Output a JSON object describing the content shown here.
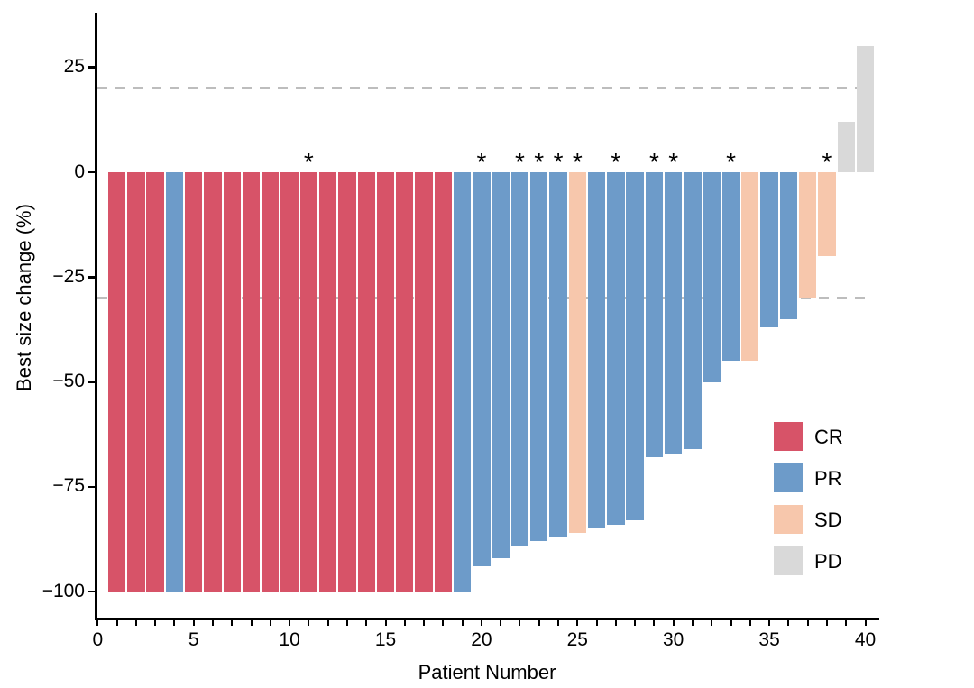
{
  "figure": {
    "background": "#ffffff",
    "axis_color": "#000000",
    "text_color": "#000000"
  },
  "chart_data": {
    "type": "bar",
    "subtype": "waterfall",
    "title": "",
    "xlabel": "Patient Number",
    "ylabel": "Best size change (%)",
    "xlim": [
      0,
      40
    ],
    "ylim": [
      -100,
      30
    ],
    "grid": false,
    "significance_marker": "*",
    "x_minor_tick_every": 1,
    "x_major_ticks": [
      {
        "value": 0,
        "label": "0"
      },
      {
        "value": 5,
        "label": "5"
      },
      {
        "value": 10,
        "label": "10"
      },
      {
        "value": 15,
        "label": "15"
      },
      {
        "value": 20,
        "label": "20"
      },
      {
        "value": 25,
        "label": "25"
      },
      {
        "value": 30,
        "label": "30"
      },
      {
        "value": 35,
        "label": "35"
      },
      {
        "value": 40,
        "label": "40"
      }
    ],
    "y_ticks": [
      {
        "value": 25,
        "label": "25"
      },
      {
        "value": 0,
        "label": "0"
      },
      {
        "value": -25,
        "label": "−25"
      },
      {
        "value": -50,
        "label": "−50"
      },
      {
        "value": -75,
        "label": "−75"
      },
      {
        "value": -100,
        "label": "−100"
      }
    ],
    "reference_lines": [
      {
        "y": 20,
        "style": "dashed",
        "color": "#bdbdbd"
      },
      {
        "y": -30,
        "style": "dashed",
        "color": "#bdbdbd"
      }
    ],
    "legend": {
      "position": "inside-right",
      "entries": [
        {
          "label": "CR",
          "color": "#d75368"
        },
        {
          "label": "PR",
          "color": "#6d9bc9"
        },
        {
          "label": "SD",
          "color": "#f7c7ac"
        },
        {
          "label": "PD",
          "color": "#d9d9d9"
        }
      ]
    },
    "patients": [
      {
        "patient": 1,
        "value": -100,
        "response": "CR",
        "star": false
      },
      {
        "patient": 2,
        "value": -100,
        "response": "CR",
        "star": false
      },
      {
        "patient": 3,
        "value": -100,
        "response": "CR",
        "star": false
      },
      {
        "patient": 4,
        "value": -100,
        "response": "PR",
        "star": false
      },
      {
        "patient": 5,
        "value": -100,
        "response": "CR",
        "star": false
      },
      {
        "patient": 6,
        "value": -100,
        "response": "CR",
        "star": false
      },
      {
        "patient": 7,
        "value": -100,
        "response": "CR",
        "star": false
      },
      {
        "patient": 8,
        "value": -100,
        "response": "CR",
        "star": false
      },
      {
        "patient": 9,
        "value": -100,
        "response": "CR",
        "star": false
      },
      {
        "patient": 10,
        "value": -100,
        "response": "CR",
        "star": false
      },
      {
        "patient": 11,
        "value": -100,
        "response": "CR",
        "star": true
      },
      {
        "patient": 12,
        "value": -100,
        "response": "CR",
        "star": false
      },
      {
        "patient": 13,
        "value": -100,
        "response": "CR",
        "star": false
      },
      {
        "patient": 14,
        "value": -100,
        "response": "CR",
        "star": false
      },
      {
        "patient": 15,
        "value": -100,
        "response": "CR",
        "star": false
      },
      {
        "patient": 16,
        "value": -100,
        "response": "CR",
        "star": false
      },
      {
        "patient": 17,
        "value": -100,
        "response": "CR",
        "star": false
      },
      {
        "patient": 18,
        "value": -100,
        "response": "CR",
        "star": false
      },
      {
        "patient": 19,
        "value": -100,
        "response": "PR",
        "star": false
      },
      {
        "patient": 20,
        "value": -94,
        "response": "PR",
        "star": true
      },
      {
        "patient": 21,
        "value": -92,
        "response": "PR",
        "star": false
      },
      {
        "patient": 22,
        "value": -89,
        "response": "PR",
        "star": true
      },
      {
        "patient": 23,
        "value": -88,
        "response": "PR",
        "star": true
      },
      {
        "patient": 24,
        "value": -87,
        "response": "PR",
        "star": true
      },
      {
        "patient": 25,
        "value": -86,
        "response": "SD",
        "star": true
      },
      {
        "patient": 26,
        "value": -85,
        "response": "PR",
        "star": false
      },
      {
        "patient": 27,
        "value": -84,
        "response": "PR",
        "star": true
      },
      {
        "patient": 28,
        "value": -83,
        "response": "PR",
        "star": false
      },
      {
        "patient": 29,
        "value": -68,
        "response": "PR",
        "star": true
      },
      {
        "patient": 30,
        "value": -67,
        "response": "PR",
        "star": true
      },
      {
        "patient": 31,
        "value": -66,
        "response": "PR",
        "star": false
      },
      {
        "patient": 32,
        "value": -50,
        "response": "PR",
        "star": false
      },
      {
        "patient": 33,
        "value": -45,
        "response": "PR",
        "star": true
      },
      {
        "patient": 34,
        "value": -45,
        "response": "SD",
        "star": false
      },
      {
        "patient": 35,
        "value": -37,
        "response": "PR",
        "star": false
      },
      {
        "patient": 36,
        "value": -35,
        "response": "PR",
        "star": false
      },
      {
        "patient": 37,
        "value": -30,
        "response": "SD",
        "star": false
      },
      {
        "patient": 38,
        "value": -20,
        "response": "SD",
        "star": true
      },
      {
        "patient": 39,
        "value": 12,
        "response": "PD",
        "star": false
      },
      {
        "patient": 40,
        "value": 30,
        "response": "PD",
        "star": false
      }
    ]
  }
}
